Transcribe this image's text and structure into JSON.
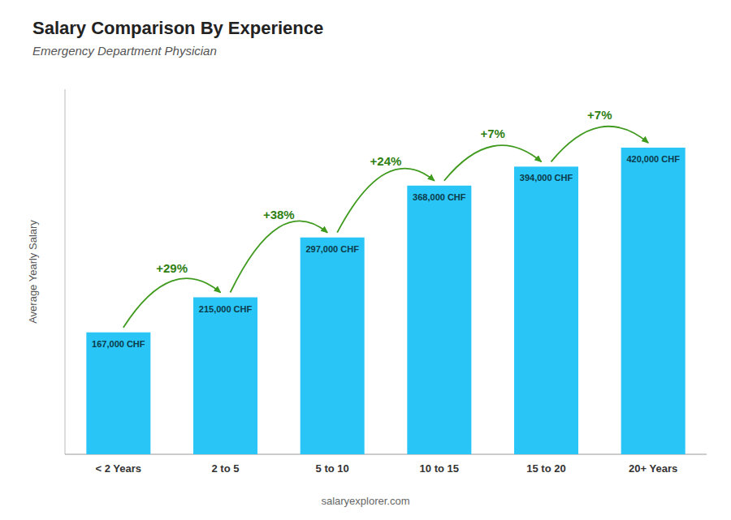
{
  "chart_data": {
    "type": "bar",
    "title": "Salary Comparison By Experience",
    "subtitle": "Emergency Department Physician",
    "y_label": "Average Yearly Salary",
    "source": "salaryexplorer.com",
    "categories": [
      "< 2 Years",
      "2 to 5",
      "5 to 10",
      "10 to 15",
      "15 to 20",
      "20+ Years"
    ],
    "values": [
      167000,
      215000,
      297000,
      368000,
      394000,
      420000
    ],
    "value_labels": [
      "167,000 CHF",
      "215,000 CHF",
      "297,000 CHF",
      "368,000 CHF",
      "394,000 CHF",
      "420,000 CHF"
    ],
    "data_labels": true,
    "annotations": [
      "+29%",
      "+38%",
      "+24%",
      "+7%",
      "+7%"
    ],
    "color": "#29C5F6",
    "ylim": [
      0,
      500000
    ],
    "tick_labels": false,
    "grid": false
  }
}
